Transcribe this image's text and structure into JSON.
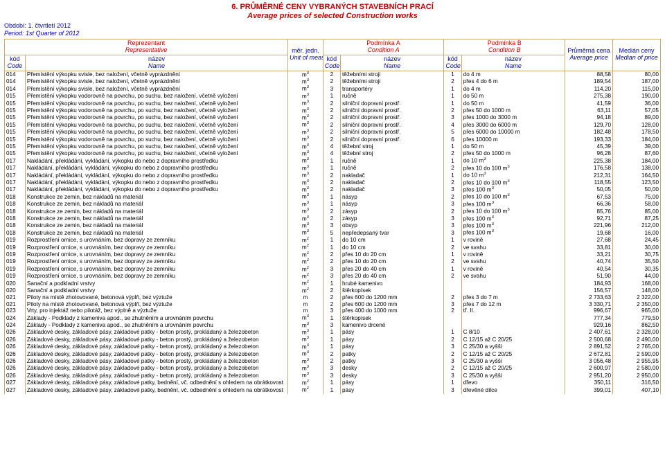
{
  "title_cz": "6. PRŮMĚRNÉ CENY VYBRANÝCH STAVEBNÍCH PRACÍ",
  "title_en": "Average prices of selected Construction works",
  "period_cz": "Období: 1. čtvrtletí 2012",
  "period_en": "Period: 1st Quarter of 2012",
  "head": {
    "rep_cz": "Reprezentant",
    "rep_en": "Representative",
    "condA_cz": "Podmínka A",
    "condA_en": "Condition A",
    "condB_cz": "Podmínka B",
    "condB_en": "Condition B",
    "code_cz": "kód",
    "code_en": "Code",
    "name_cz": "název",
    "name_en": "Name",
    "unit_cz": "měr. jedn.",
    "unit_en": "Unit of measure",
    "avg_cz": "Průměrná cena",
    "avg_en": "Average price",
    "med_cz": "Medián ceny",
    "med_en": "Median of price"
  },
  "rows": [
    {
      "c": "014",
      "n": "Přemístění výkopku svisle, bez naložení, včetně vyprázdnění",
      "u": "m3",
      "ac": "2",
      "an": "těžebními stroji",
      "bc": "1",
      "bn": "do 4 m",
      "avg": "88,58",
      "med": "80,00"
    },
    {
      "c": "014",
      "n": "Přemístění výkopku svisle, bez naložení, včetně vyprázdnění",
      "u": "m3",
      "ac": "2",
      "an": "těžebními stroji",
      "bc": "2",
      "bn": "přes 4 do 6 m",
      "avg": "189,54",
      "med": "187,00"
    },
    {
      "c": "014",
      "n": "Přemístění výkopku svisle, bez naložení, včetně vyprázdnění",
      "u": "m3",
      "ac": "3",
      "an": "transportéry",
      "bc": "1",
      "bn": "do 4 m",
      "avg": "114,20",
      "med": "115,00"
    },
    {
      "c": "015",
      "n": "Přemístění výkopku vodorovně na povrchu, po suchu, bez naložení, včetně vyložení",
      "u": "m3",
      "ac": "1",
      "an": "ručně",
      "bc": "1",
      "bn": "do 50 m",
      "avg": "275,38",
      "med": "190,00"
    },
    {
      "c": "015",
      "n": "Přemístění výkopku vodorovně na povrchu, po suchu, bez naložení, včetně vyložení",
      "u": "m3",
      "ac": "2",
      "an": "silniční dopravní prostř.",
      "bc": "1",
      "bn": "do 50 m",
      "avg": "41,59",
      "med": "36,00"
    },
    {
      "c": "015",
      "n": "Přemístění výkopku vodorovně na povrchu, po suchu, bez naložení, včetně vyložení",
      "u": "m3",
      "ac": "2",
      "an": "silniční dopravní prostř.",
      "bc": "2",
      "bn": "přes 50 do 1000 m",
      "avg": "63,11",
      "med": "57,05"
    },
    {
      "c": "015",
      "n": "Přemístění výkopku vodorovně na povrchu, po suchu, bez naložení, včetně vyložení",
      "u": "m3",
      "ac": "2",
      "an": "silniční dopravní prostř.",
      "bc": "3",
      "bn": "přes 1000 do 3000 m",
      "avg": "94,18",
      "med": "89,00"
    },
    {
      "c": "015",
      "n": "Přemístění výkopku vodorovně na povrchu, po suchu, bez naložení, včetně vyložení",
      "u": "m3",
      "ac": "2",
      "an": "silniční dopravní prostř.",
      "bc": "4",
      "bn": "přes 3000 do 6000 m",
      "avg": "129,70",
      "med": "128,00"
    },
    {
      "c": "015",
      "n": "Přemístění výkopku vodorovně na povrchu, po suchu, bez naložení, včetně vyložení",
      "u": "m3",
      "ac": "2",
      "an": "silniční dopravní prostř.",
      "bc": "5",
      "bn": "přes 6000 do 10000 m",
      "avg": "182,48",
      "med": "178,50"
    },
    {
      "c": "015",
      "n": "Přemístění výkopku vodorovně na povrchu, po suchu, bez naložení, včetně vyložení",
      "u": "m3",
      "ac": "2",
      "an": "silniční dopravní prostř.",
      "bc": "6",
      "bn": "přes 10000 m",
      "avg": "193,33",
      "med": "184,00"
    },
    {
      "c": "015",
      "n": "Přemístění výkopku vodorovně na povrchu, po suchu, bez naložení, včetně vyložení",
      "u": "m3",
      "ac": "4",
      "an": "těžební stroj",
      "bc": "1",
      "bn": "do 50 m",
      "avg": "45,39",
      "med": "39,00"
    },
    {
      "c": "015",
      "n": "Přemístění výkopku vodorovně na povrchu, po suchu, bez naložení, včetně vyložení",
      "u": "m3",
      "ac": "4",
      "an": "těžební stroj",
      "bc": "2",
      "bn": "přes 50 do 1000 m",
      "avg": "96,28",
      "med": "87,60"
    },
    {
      "c": "017",
      "n": "Nakládání, překládání, vykládání, výkopku do nebo z dopravního prostředku",
      "u": "m3",
      "ac": "1",
      "an": "ručně",
      "bc": "1",
      "bn": "do 10 m3",
      "avg": "225,38",
      "med": "184,00"
    },
    {
      "c": "017",
      "n": "Nakládání, překládání, vykládání, výkopku do nebo z dopravního prostředku",
      "u": "m3",
      "ac": "1",
      "an": "ručně",
      "bc": "2",
      "bn": "přes 10 do 100 m3",
      "avg": "176,58",
      "med": "138,00"
    },
    {
      "c": "017",
      "n": "Nakládání, překládání, vykládání, výkopku do nebo z dopravního prostředku",
      "u": "m3",
      "ac": "2",
      "an": "nakladač",
      "bc": "1",
      "bn": "do 10 m3",
      "avg": "212,31",
      "med": "164,50"
    },
    {
      "c": "017",
      "n": "Nakládání, překládání, vykládání, výkopku do nebo z dopravního prostředku",
      "u": "m3",
      "ac": "2",
      "an": "nakladač",
      "bc": "2",
      "bn": "přes 10 do 100 m3",
      "avg": "118,55",
      "med": "123,50"
    },
    {
      "c": "017",
      "n": "Nakládání, překládání, vykládání, výkopku do nebo z dopravního prostředku",
      "u": "m3",
      "ac": "2",
      "an": "nakladač",
      "bc": "3",
      "bn": "přes 100 m3",
      "avg": "50,05",
      "med": "50,00"
    },
    {
      "c": "018",
      "n": "Konstrukce ze zemin, bez nákladů na materiál",
      "u": "m3",
      "ac": "1",
      "an": "násyp",
      "bc": "2",
      "bn": "přes 10 do 100 m3",
      "avg": "67,53",
      "med": "75,00"
    },
    {
      "c": "018",
      "n": "Konstrukce ze zemin, bez nákladů na materiál",
      "u": "m3",
      "ac": "1",
      "an": "násyp",
      "bc": "3",
      "bn": "přes 100 m3",
      "avg": "66,36",
      "med": "58,00"
    },
    {
      "c": "018",
      "n": "Konstrukce ze zemin, bez nákladů na materiál",
      "u": "m3",
      "ac": "2",
      "an": "zásyp",
      "bc": "2",
      "bn": "přes 10 do 100 m3",
      "avg": "85,76",
      "med": "85,00"
    },
    {
      "c": "018",
      "n": "Konstrukce ze zemin, bez nákladů na materiál",
      "u": "m3",
      "ac": "2",
      "an": "zásyp",
      "bc": "3",
      "bn": "přes 100 m3",
      "avg": "92,71",
      "med": "87,25"
    },
    {
      "c": "018",
      "n": "Konstrukce ze zemin, bez nákladů na materiál",
      "u": "m3",
      "ac": "3",
      "an": "obsyp",
      "bc": "3",
      "bn": "přes 100 m3",
      "avg": "221,96",
      "med": "212,00"
    },
    {
      "c": "018",
      "n": "Konstrukce ze zemin, bez nákladů na materiál",
      "u": "m3",
      "ac": "5",
      "an": "nepředepsaný tvar",
      "bc": "3",
      "bn": "přes 100 m3",
      "avg": "19,68",
      "med": "16,00"
    },
    {
      "c": "019",
      "n": "Rozprostření ornice, s urovnáním, bez dopravy ze zemníku",
      "u": "m2",
      "ac": "1",
      "an": "do 10 cm",
      "bc": "1",
      "bn": "v rovině",
      "avg": "27,68",
      "med": "24,45"
    },
    {
      "c": "019",
      "n": "Rozprostření ornice, s urovnáním, bez dopravy ze zemníku",
      "u": "m2",
      "ac": "1",
      "an": "do 10 cm",
      "bc": "2",
      "bn": "ve svahu",
      "avg": "33,81",
      "med": "30,00"
    },
    {
      "c": "019",
      "n": "Rozprostření ornice, s urovnáním, bez dopravy ze zemníku",
      "u": "m2",
      "ac": "2",
      "an": "přes 10 do 20 cm",
      "bc": "1",
      "bn": "v rovině",
      "avg": "33,21",
      "med": "30,75"
    },
    {
      "c": "019",
      "n": "Rozprostření ornice, s urovnáním, bez dopravy ze zemníku",
      "u": "m2",
      "ac": "2",
      "an": "přes 10 do 20 cm",
      "bc": "2",
      "bn": "ve svahu",
      "avg": "40,74",
      "med": "35,50"
    },
    {
      "c": "019",
      "n": "Rozprostření ornice, s urovnáním, bez dopravy ze zemníku",
      "u": "m2",
      "ac": "3",
      "an": "přes 20 do 40 cm",
      "bc": "1",
      "bn": "v rovině",
      "avg": "40,54",
      "med": "30,35"
    },
    {
      "c": "019",
      "n": "Rozprostření ornice, s urovnáním, bez dopravy ze zemníku",
      "u": "m2",
      "ac": "3",
      "an": "přes 20 do 40 cm",
      "bc": "2",
      "bn": "ve svahu",
      "avg": "51,90",
      "med": "44,00"
    },
    {
      "c": "020",
      "n": "Sanační a podkladní vrstvy",
      "u": "m2",
      "ac": "1",
      "an": "hrubé kamenivo",
      "bc": "",
      "bn": "",
      "avg": "184,93",
      "med": "168,00"
    },
    {
      "c": "020",
      "n": "Sanační a podkladní vrstvy",
      "u": "m2",
      "ac": "2",
      "an": "štěrkopísek",
      "bc": "",
      "bn": "",
      "avg": "156,57",
      "med": "148,00"
    },
    {
      "c": "021",
      "n": "Piloty na místě zhotovované, betonová výplň, bez výztuže",
      "u": "m",
      "ac": "2",
      "an": "přes 600 do 1200 mm",
      "bc": "2",
      "bn": "přes 3 do 7 m",
      "avg": "2 733,63",
      "med": "2 322,00"
    },
    {
      "c": "021",
      "n": "Piloty na místě zhotovované, betonová výplň, bez výztuže",
      "u": "m",
      "ac": "2",
      "an": "přes 600 do 1200 mm",
      "bc": "3",
      "bn": "přes 7 do 12 m",
      "avg": "3 330,71",
      "med": "2 350,00"
    },
    {
      "c": "023",
      "n": "Vrty, pro injektáž nebo pilotáž, bez výplně a výztuže",
      "u": "m",
      "ac": "3",
      "an": "přes 400 do 1000 mm",
      "bc": "2",
      "bn": "tř. II.",
      "avg": "996,67",
      "med": "965,00"
    },
    {
      "c": "024",
      "n": "Základy - Podklady z kameniva apod., se zhutněním a urovnáním povrchu",
      "u": "m3",
      "ac": "1",
      "an": "štěrkopísek",
      "bc": "",
      "bn": "",
      "avg": "777,34",
      "med": "779,50"
    },
    {
      "c": "024",
      "n": "Základy - Podklady z kameniva apod., se zhutněním a urovnáním povrchu",
      "u": "m3",
      "ac": "3",
      "an": "kamenivo drcené",
      "bc": "",
      "bn": "",
      "avg": "929,16",
      "med": "862,50"
    },
    {
      "c": "026",
      "n": "Základové desky, základové pásy, základové patky - beton prostý, prokládaný a železobeton",
      "u": "m3",
      "ac": "1",
      "an": "pásy",
      "bc": "1",
      "bn": "C 8/10",
      "avg": "2 407,61",
      "med": "2 328,00"
    },
    {
      "c": "026",
      "n": "Základové desky, základové pásy, základové patky - beton prostý, prokládaný a železobeton",
      "u": "m3",
      "ac": "1",
      "an": "pásy",
      "bc": "2",
      "bn": "C 12/15 až C 20/25",
      "avg": "2 500,68",
      "med": "2 490,00"
    },
    {
      "c": "026",
      "n": "Základové desky, základové pásy, základové patky - beton prostý, prokládaný a železobeton",
      "u": "m3",
      "ac": "1",
      "an": "pásy",
      "bc": "3",
      "bn": "C 25/30 a vyšší",
      "avg": "2 891,52",
      "med": "2 765,00"
    },
    {
      "c": "026",
      "n": "Základové desky, základové pásy, základové patky - beton prostý, prokládaný a železobeton",
      "u": "m3",
      "ac": "2",
      "an": "patky",
      "bc": "2",
      "bn": "C 12/15 až C 20/25",
      "avg": "2 672,81",
      "med": "2 590,00"
    },
    {
      "c": "026",
      "n": "Základové desky, základové pásy, základové patky - beton prostý, prokládaný a železobeton",
      "u": "m3",
      "ac": "2",
      "an": "patky",
      "bc": "3",
      "bn": "C 25/30 a vyšší",
      "avg": "3 056,48",
      "med": "2 955,95"
    },
    {
      "c": "026",
      "n": "Základové desky, základové pásy, základové patky - beton prostý, prokládaný a železobeton",
      "u": "m3",
      "ac": "3",
      "an": "desky",
      "bc": "2",
      "bn": "C 12/15 až C 20/25",
      "avg": "2 600,97",
      "med": "2 580,00"
    },
    {
      "c": "026",
      "n": "Základové desky, základové pásy, základové patky - beton prostý, prokládaný a železobeton",
      "u": "m3",
      "ac": "3",
      "an": "desky",
      "bc": "3",
      "bn": "C 25/30 a vyšší",
      "avg": "2 951,20",
      "med": "2 950,00"
    },
    {
      "c": "027",
      "n": "Základové desky, základové pásy, základové patky, bednění, vč. odbednění s ohledem na obrátkovost",
      "u": "m2",
      "ac": "1",
      "an": "pásy",
      "bc": "1",
      "bn": "dřevo",
      "avg": "350,11",
      "med": "316,50"
    },
    {
      "c": "027",
      "n": "Základové desky, základové pásy, základové patky, bednění, vč. odbednění s ohledem na obrátkovost",
      "u": "m2",
      "ac": "1",
      "an": "pásy",
      "bc": "3",
      "bn": "dřevěné dílce",
      "avg": "399,01",
      "med": "407,10"
    }
  ],
  "colors": {
    "header_text": "#0000c0",
    "title_text": "#c00000",
    "border": "#c9a96e",
    "body_text": "#000000",
    "background": "#ffffff"
  },
  "font_sizes": {
    "title": 11,
    "header": 9,
    "body": 8.2
  }
}
